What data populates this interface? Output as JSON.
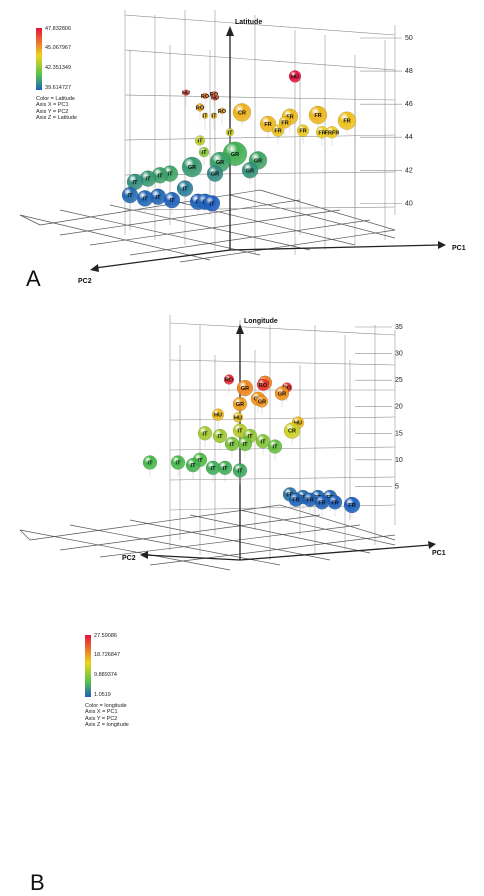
{
  "panels": [
    {
      "letter": "A",
      "legend": {
        "ticks": [
          "47.832806",
          "45.067967",
          "42.351349",
          "39.614727"
        ],
        "color_line": "Color = Latitude",
        "axis_x_line": "Axis X = PC1",
        "axis_y_line": "Axis Y = PC2",
        "axis_z_line": "Axis Z = Latitude"
      },
      "axis_labels": {
        "z": "Latitude",
        "x": "PC1",
        "y": "PC2"
      },
      "z_ticks": [
        "50",
        "48",
        "46",
        "44",
        "42",
        "40"
      ],
      "colors": {
        "high": "#e8123c",
        "mid": "#ecd51c",
        "low": "#1f5fbf"
      }
    },
    {
      "letter": "B",
      "legend": {
        "ticks": [
          "27.59086",
          "18.726847",
          "9.889374",
          "1.0519"
        ],
        "color_line": "Color = longitude",
        "axis_x_line": "Axis X = PC1",
        "axis_y_line": "Axis Y = PC2",
        "axis_z_line": "Axis Z = longitude"
      },
      "axis_labels": {
        "z": "Longitude",
        "x": "PC1",
        "y": "PC2"
      },
      "z_ticks": [
        "35",
        "30",
        "25",
        "20",
        "15",
        "10",
        "5"
      ],
      "colors": {
        "high": "#e8123c",
        "mid": "#ecd51c",
        "low": "#1f5fbf"
      }
    }
  ],
  "chart_data": [
    {
      "type": "scatter",
      "title": "",
      "xlabel": "PC1",
      "ylabel": "PC2",
      "zlabel": "Latitude",
      "color_by": "Latitude",
      "zlim": [
        39.6,
        50
      ],
      "points": [
        {
          "label": "HU",
          "z": 47.8,
          "c": 47.8
        },
        {
          "label": "RO",
          "z": 46.6,
          "c": 46.6
        },
        {
          "label": "RO",
          "z": 46.5,
          "c": 46.4
        },
        {
          "label": "HU",
          "z": 46.7,
          "c": 47.2
        },
        {
          "label": "HU",
          "z": 46.4,
          "c": 47.0
        },
        {
          "label": "RO",
          "z": 45.8,
          "c": 45.6
        },
        {
          "label": "RO",
          "z": 45.6,
          "c": 45.5
        },
        {
          "label": "IT",
          "z": 45.3,
          "c": 45.1
        },
        {
          "label": "IT",
          "z": 45.3,
          "c": 45.0
        },
        {
          "label": "CR",
          "z": 45.5,
          "c": 45.3
        },
        {
          "label": "FR",
          "z": 44.8,
          "c": 45.2
        },
        {
          "label": "FR",
          "z": 45.0,
          "c": 45.1
        },
        {
          "label": "FR",
          "z": 45.1,
          "c": 45.2
        },
        {
          "label": "FR",
          "z": 45.0,
          "c": 45.0
        },
        {
          "label": "FR",
          "z": 44.9,
          "c": 45.1
        },
        {
          "label": "FR",
          "z": 44.4,
          "c": 44.9
        },
        {
          "label": "FR",
          "z": 44.4,
          "c": 44.8
        },
        {
          "label": "FR",
          "z": 44.3,
          "c": 44.7
        },
        {
          "label": "FRFR",
          "z": 44.3,
          "c": 44.8
        },
        {
          "label": "IT",
          "z": 43.8,
          "c": 43.8
        },
        {
          "label": "IT",
          "z": 44.3,
          "c": 44.0
        },
        {
          "label": "IT",
          "z": 43.1,
          "c": 43.0
        },
        {
          "label": "GR",
          "z": 43.0,
          "c": 41.8
        },
        {
          "label": "GR",
          "z": 42.6,
          "c": 41.5
        },
        {
          "label": "GR",
          "z": 42.5,
          "c": 41.4
        },
        {
          "label": "GR",
          "z": 42.2,
          "c": 41.2
        },
        {
          "label": "GR",
          "z": 42.0,
          "c": 41.0
        },
        {
          "label": "GR",
          "z": 41.8,
          "c": 40.8
        },
        {
          "label": "IT",
          "z": 41.8,
          "c": 41.5
        },
        {
          "label": "IT",
          "z": 41.7,
          "c": 41.4
        },
        {
          "label": "IT",
          "z": 41.5,
          "c": 41.2
        },
        {
          "label": "IT",
          "z": 41.3,
          "c": 40.9
        },
        {
          "label": "IT",
          "z": 40.9,
          "c": 40.4
        },
        {
          "label": "IT",
          "z": 40.5,
          "c": 39.9
        },
        {
          "label": "IT",
          "z": 40.3,
          "c": 39.8
        },
        {
          "label": "IT",
          "z": 40.4,
          "c": 39.8
        },
        {
          "label": "IT",
          "z": 40.2,
          "c": 39.7
        },
        {
          "label": "IT",
          "z": 40.1,
          "c": 39.7
        },
        {
          "label": "IT",
          "z": 40.0,
          "c": 39.6
        },
        {
          "label": "IT",
          "z": 40.1,
          "c": 39.7
        }
      ]
    },
    {
      "type": "scatter",
      "title": "",
      "xlabel": "PC1",
      "ylabel": "PC2",
      "zlabel": "Longitude",
      "color_by": "longitude",
      "zlim": [
        0,
        35
      ],
      "points": [
        {
          "label": "RO",
          "z": 25.5,
          "c": 26.5
        },
        {
          "label": "RO",
          "z": 24.5,
          "c": 26.0
        },
        {
          "label": "RO",
          "z": 24.0,
          "c": 25.8
        },
        {
          "label": "GR",
          "z": 24.5,
          "c": 23.0
        },
        {
          "label": "GR",
          "z": 23.5,
          "c": 22.5
        },
        {
          "label": "GR",
          "z": 22.5,
          "c": 22.0
        },
        {
          "label": "GR",
          "z": 21.5,
          "c": 21.5
        },
        {
          "label": "GR",
          "z": 21.0,
          "c": 21.5
        },
        {
          "label": "GR",
          "z": 20.5,
          "c": 21.0
        },
        {
          "label": "HU",
          "z": 18.5,
          "c": 19.0
        },
        {
          "label": "HU",
          "z": 18.0,
          "c": 18.5
        },
        {
          "label": "HU",
          "z": 17.0,
          "c": 19.0
        },
        {
          "label": "CR",
          "z": 15.5,
          "c": 15.5
        },
        {
          "label": "IT",
          "z": 15.5,
          "c": 14.5
        },
        {
          "label": "IT",
          "z": 15.0,
          "c": 13.5
        },
        {
          "label": "IT",
          "z": 14.5,
          "c": 13.0
        },
        {
          "label": "IT",
          "z": 14.5,
          "c": 12.5
        },
        {
          "label": "IT",
          "z": 13.5,
          "c": 12.0
        },
        {
          "label": "IT",
          "z": 13.0,
          "c": 11.5
        },
        {
          "label": "IT",
          "z": 13.0,
          "c": 11.0
        },
        {
          "label": "IT",
          "z": 12.5,
          "c": 10.5
        },
        {
          "label": "IT",
          "z": 10.0,
          "c": 9.5
        },
        {
          "label": "IT",
          "z": 9.5,
          "c": 9.0
        },
        {
          "label": "IT",
          "z": 9.5,
          "c": 9.0
        },
        {
          "label": "IT",
          "z": 9.0,
          "c": 8.5
        },
        {
          "label": "IT",
          "z": 8.5,
          "c": 8.0
        },
        {
          "label": "IT",
          "z": 8.5,
          "c": 8.0
        },
        {
          "label": "IT",
          "z": 8.0,
          "c": 7.5
        },
        {
          "label": "FR",
          "z": 3.5,
          "c": 3.0
        },
        {
          "label": "FR",
          "z": 3.0,
          "c": 2.5
        },
        {
          "label": "FR",
          "z": 3.0,
          "c": 2.0
        },
        {
          "label": "FR",
          "z": 3.0,
          "c": 2.0
        },
        {
          "label": "FR",
          "z": 2.5,
          "c": 1.5
        },
        {
          "label": "FR",
          "z": 2.5,
          "c": 1.5
        },
        {
          "label": "FR",
          "z": 2.0,
          "c": 1.2
        },
        {
          "label": "FR",
          "z": 2.0,
          "c": 1.2
        },
        {
          "label": "FR",
          "z": 1.5,
          "c": 1.1
        }
      ]
    }
  ]
}
